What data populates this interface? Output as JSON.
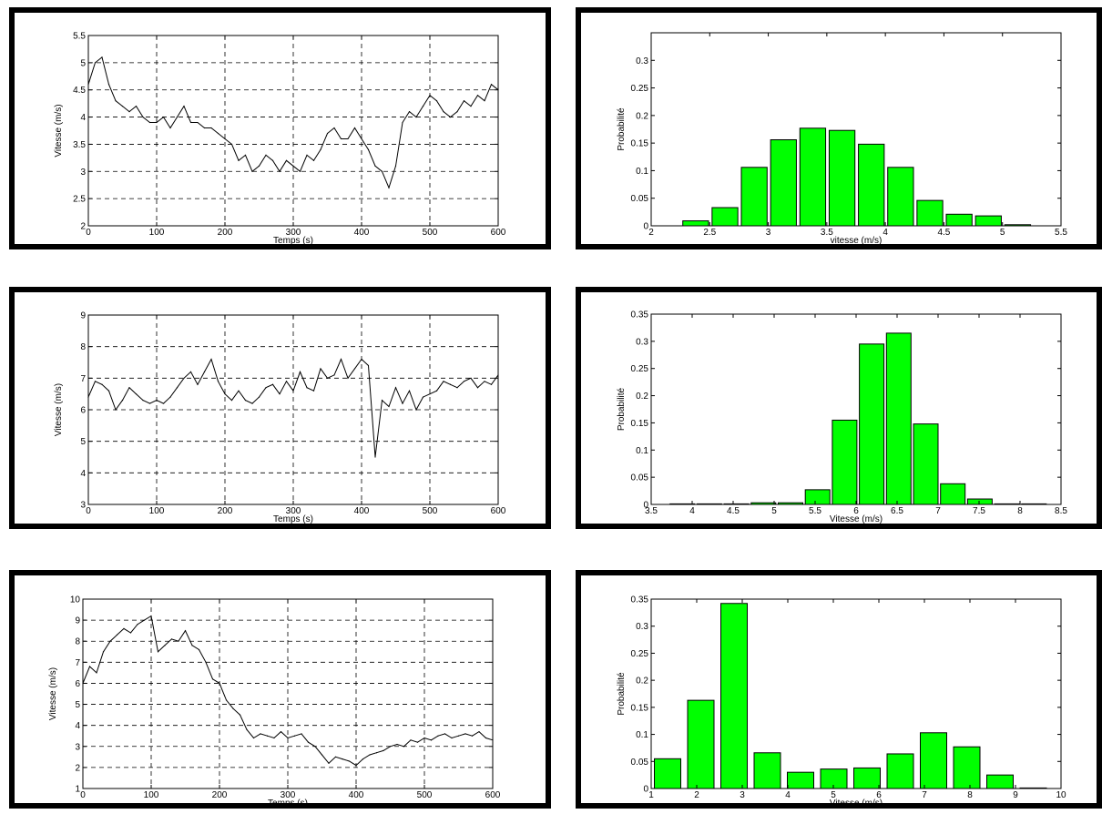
{
  "colors": {
    "bar": "#00ff00",
    "line": "#000000",
    "frame": "#000000"
  },
  "chart_data": [
    {
      "type": "line",
      "xlabel": "Temps (s)",
      "ylabel": "Vitesse (m/s)",
      "xlim": [
        0,
        600
      ],
      "ylim": [
        2,
        5.5
      ],
      "xticks": [
        0,
        100,
        200,
        300,
        400,
        500,
        600
      ],
      "yticks": [
        2,
        2.5,
        3,
        3.5,
        4,
        4.5,
        5,
        5.5
      ],
      "grid": true,
      "x": [
        0,
        10,
        20,
        30,
        40,
        50,
        60,
        70,
        80,
        90,
        100,
        110,
        120,
        130,
        140,
        150,
        160,
        170,
        180,
        190,
        200,
        210,
        220,
        230,
        240,
        250,
        260,
        270,
        280,
        290,
        300,
        310,
        320,
        330,
        340,
        350,
        360,
        370,
        380,
        390,
        400,
        410,
        420,
        430,
        440,
        450,
        460,
        470,
        480,
        490,
        500,
        510,
        520,
        530,
        540,
        550,
        560,
        570,
        580,
        590,
        600
      ],
      "y": [
        4.6,
        5.0,
        5.1,
        4.6,
        4.3,
        4.2,
        4.1,
        4.2,
        4.0,
        3.9,
        3.9,
        4.0,
        3.8,
        4.0,
        4.2,
        3.9,
        3.9,
        3.8,
        3.8,
        3.7,
        3.6,
        3.5,
        3.2,
        3.3,
        3.0,
        3.1,
        3.3,
        3.2,
        3.0,
        3.2,
        3.1,
        3.0,
        3.3,
        3.2,
        3.4,
        3.7,
        3.8,
        3.6,
        3.6,
        3.8,
        3.6,
        3.4,
        3.1,
        3.0,
        2.7,
        3.1,
        3.9,
        4.1,
        4.0,
        4.2,
        4.4,
        4.3,
        4.1,
        4.0,
        4.1,
        4.3,
        4.2,
        4.4,
        4.3,
        4.6,
        4.5
      ]
    },
    {
      "type": "bar",
      "xlabel": "vitesse (m/s)",
      "ylabel": "Probabilité",
      "xlim": [
        2,
        5.5
      ],
      "ylim": [
        0,
        0.35
      ],
      "xticks": [
        2,
        2.5,
        3,
        3.5,
        4,
        4.5,
        5,
        5.5
      ],
      "yticks": [
        0,
        0.05,
        0.1,
        0.15,
        0.2,
        0.25,
        0.3
      ],
      "bar_width": 0.22,
      "x": [
        2.38,
        2.63,
        2.88,
        3.13,
        3.38,
        3.63,
        3.88,
        4.13,
        4.38,
        4.63,
        4.88,
        5.13
      ],
      "values": [
        0.009,
        0.033,
        0.106,
        0.156,
        0.177,
        0.173,
        0.148,
        0.106,
        0.046,
        0.021,
        0.018,
        0.002
      ]
    },
    {
      "type": "line",
      "xlabel": "Temps (s)",
      "ylabel": "Vitesse (m/s)",
      "xlim": [
        0,
        600
      ],
      "ylim": [
        3,
        9
      ],
      "xticks": [
        0,
        100,
        200,
        300,
        400,
        500,
        600
      ],
      "yticks": [
        3,
        4,
        5,
        6,
        7,
        8,
        9
      ],
      "grid": true,
      "x": [
        0,
        10,
        20,
        30,
        40,
        50,
        60,
        70,
        80,
        90,
        100,
        110,
        120,
        130,
        140,
        150,
        160,
        170,
        180,
        190,
        200,
        210,
        220,
        230,
        240,
        250,
        260,
        270,
        280,
        290,
        300,
        310,
        320,
        330,
        340,
        350,
        360,
        370,
        380,
        390,
        400,
        410,
        420,
        430,
        440,
        450,
        460,
        470,
        480,
        490,
        500,
        510,
        520,
        530,
        540,
        550,
        560,
        570,
        580,
        590,
        600
      ],
      "y": [
        6.4,
        6.9,
        6.8,
        6.6,
        6.0,
        6.3,
        6.7,
        6.5,
        6.3,
        6.2,
        6.3,
        6.2,
        6.4,
        6.7,
        7.0,
        7.2,
        6.8,
        7.2,
        7.6,
        6.9,
        6.5,
        6.3,
        6.6,
        6.3,
        6.2,
        6.4,
        6.7,
        6.8,
        6.5,
        6.9,
        6.6,
        7.2,
        6.7,
        6.6,
        7.3,
        7.0,
        7.1,
        7.6,
        7.0,
        7.3,
        7.6,
        7.4,
        4.5,
        6.3,
        6.1,
        6.7,
        6.2,
        6.6,
        6.0,
        6.4,
        6.5,
        6.6,
        6.9,
        6.8,
        6.7,
        6.9,
        7.0,
        6.7,
        6.9,
        6.8,
        7.1
      ]
    },
    {
      "type": "bar",
      "xlabel": "Vitesse (m/s)",
      "ylabel": "Probabilité",
      "xlim": [
        3.5,
        8.5
      ],
      "ylim": [
        0,
        0.35
      ],
      "xticks": [
        3.5,
        4,
        4.5,
        5,
        5.5,
        6,
        6.5,
        7,
        7.5,
        8,
        8.5
      ],
      "yticks": [
        0,
        0.05,
        0.1,
        0.15,
        0.2,
        0.25,
        0.3,
        0.35
      ],
      "bar_width": 0.3,
      "x": [
        3.88,
        4.21,
        4.54,
        4.87,
        5.2,
        5.53,
        5.86,
        6.19,
        6.52,
        6.85,
        7.18,
        7.51,
        7.84,
        8.17
      ],
      "values": [
        0.001,
        0.001,
        0.001,
        0.003,
        0.003,
        0.027,
        0.155,
        0.295,
        0.315,
        0.148,
        0.038,
        0.01,
        0.001,
        0.0
      ]
    },
    {
      "type": "line",
      "xlabel": "Temps (s)",
      "ylabel": "Vitesse (m/s)",
      "xlim": [
        0,
        600
      ],
      "ylim": [
        1,
        10
      ],
      "xticks": [
        0,
        100,
        200,
        300,
        400,
        500,
        600
      ],
      "yticks": [
        1,
        2,
        3,
        4,
        5,
        6,
        7,
        8,
        9,
        10
      ],
      "grid": true,
      "x": [
        0,
        10,
        20,
        30,
        40,
        50,
        60,
        70,
        80,
        90,
        100,
        110,
        120,
        130,
        140,
        150,
        160,
        170,
        180,
        190,
        200,
        210,
        220,
        230,
        240,
        250,
        260,
        270,
        280,
        290,
        300,
        310,
        320,
        330,
        340,
        350,
        360,
        370,
        380,
        390,
        400,
        410,
        420,
        430,
        440,
        450,
        460,
        470,
        480,
        490,
        500,
        510,
        520,
        530,
        540,
        550,
        560,
        570,
        580,
        590,
        600
      ],
      "y": [
        6.0,
        6.8,
        6.5,
        7.5,
        8.0,
        8.3,
        8.6,
        8.4,
        8.8,
        9.0,
        9.2,
        7.5,
        7.8,
        8.1,
        8.0,
        8.5,
        7.8,
        7.6,
        7.0,
        6.2,
        6.0,
        5.2,
        4.8,
        4.5,
        3.8,
        3.4,
        3.6,
        3.5,
        3.4,
        3.7,
        3.4,
        3.5,
        3.6,
        3.2,
        3.0,
        2.6,
        2.2,
        2.5,
        2.4,
        2.3,
        2.1,
        2.4,
        2.6,
        2.7,
        2.8,
        3.0,
        3.1,
        3.0,
        3.3,
        3.2,
        3.4,
        3.3,
        3.5,
        3.6,
        3.4,
        3.5,
        3.6,
        3.5,
        3.7,
        3.4,
        3.3
      ]
    },
    {
      "type": "bar",
      "xlabel": "Vitesse (m/s)",
      "ylabel": "Probabilité",
      "xlim": [
        1,
        10
      ],
      "ylim": [
        0,
        0.35
      ],
      "xticks": [
        1,
        2,
        3,
        4,
        5,
        6,
        7,
        8,
        9,
        10
      ],
      "yticks": [
        0,
        0.05,
        0.1,
        0.15,
        0.2,
        0.25,
        0.3,
        0.35
      ],
      "bar_width": 0.58,
      "x": [
        1.36,
        2.09,
        2.82,
        3.55,
        4.28,
        5.01,
        5.74,
        6.47,
        7.2,
        7.93,
        8.66,
        9.39
      ],
      "values": [
        0.055,
        0.163,
        0.342,
        0.066,
        0.03,
        0.036,
        0.038,
        0.064,
        0.103,
        0.077,
        0.025,
        0.001
      ]
    }
  ]
}
